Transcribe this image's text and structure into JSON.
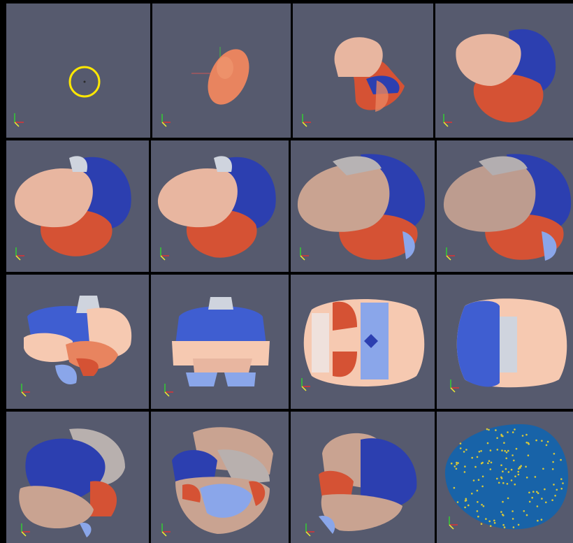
{
  "window": {
    "title": ""
  },
  "colors": {
    "background": "#000000",
    "viewport_bg": "#565a6e",
    "peach": "#e8b6a0",
    "light_peach": "#f6c9b1",
    "salmon": "#e8845f",
    "orange_red": "#d55234",
    "dark_blue": "#2c3fb0",
    "mid_blue": "#3f5ed1",
    "light_blue": "#8aa6ea",
    "pale_gray": "#cfd4de",
    "teal_blue": "#1863a8",
    "marker_yellow": "#ffe800"
  },
  "viewports": [
    {
      "id": "r1c1",
      "content": "origin-marker"
    },
    {
      "id": "r1c2",
      "content": "single-ellipsoid"
    },
    {
      "id": "r1c3",
      "content": "growing-clusters"
    },
    {
      "id": "r1c4",
      "content": "growing-clusters"
    },
    {
      "id": "r2c1",
      "content": "brain-partial"
    },
    {
      "id": "r2c2",
      "content": "brain-partial"
    },
    {
      "id": "r2c3",
      "content": "brain-full"
    },
    {
      "id": "r2c4",
      "content": "brain-full"
    },
    {
      "id": "r3c1",
      "content": "flat-side-view"
    },
    {
      "id": "r3c2",
      "content": "flat-front-view"
    },
    {
      "id": "r3c3",
      "content": "flat-bottom-view"
    },
    {
      "id": "r3c4",
      "content": "flat-top-view"
    },
    {
      "id": "r4c1",
      "content": "brain-rotated"
    },
    {
      "id": "r4c2",
      "content": "brain-rotated"
    },
    {
      "id": "r4c3",
      "content": "brain-rotated"
    },
    {
      "id": "r4c4",
      "content": "brain-points"
    }
  ]
}
